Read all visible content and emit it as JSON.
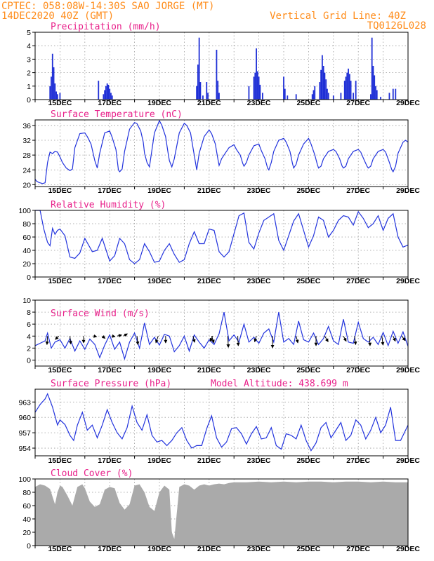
{
  "header": {
    "line1_left": "CPTEC:   058:08W-14:30S   SAO JORGE (MT)",
    "line2_left": "14DEC2020 40Z (GMT)",
    "line1_right": "Vertical Grid Line: 40Z",
    "line2_right": "TQ0126L028"
  },
  "colors": {
    "header": "#ff8c1a",
    "panel_title": "#e8208a",
    "series_line": "#2233dd",
    "precip_bar": "#1f2fd6",
    "cloud_fill": "#aaaaaa",
    "wind_arrow": "#000000",
    "grid": "#999999"
  },
  "chart_data": [
    {
      "id": "precip",
      "type": "bar",
      "title": "Precipitation (mm/h)",
      "ylim": [
        0,
        5
      ],
      "yticks": [
        0,
        1,
        2,
        3,
        4,
        5
      ],
      "xticks": [
        "15DEC",
        "17DEC",
        "19DEC",
        "21DEC",
        "23DEC",
        "25DEC",
        "27DEC",
        "29DEC"
      ],
      "bars": [
        [
          14.6,
          1.0
        ],
        [
          14.65,
          1.7
        ],
        [
          14.7,
          3.4
        ],
        [
          14.75,
          2.4
        ],
        [
          14.8,
          1.2
        ],
        [
          14.85,
          0.6
        ],
        [
          14.9,
          0.4
        ],
        [
          15.0,
          0.5
        ],
        [
          16.55,
          1.4
        ],
        [
          16.75,
          0.4
        ],
        [
          16.8,
          0.7
        ],
        [
          16.85,
          1.0
        ],
        [
          16.9,
          1.2
        ],
        [
          16.95,
          1.1
        ],
        [
          17.0,
          0.8
        ],
        [
          17.05,
          0.5
        ],
        [
          17.1,
          0.3
        ],
        [
          20.5,
          1.0
        ],
        [
          20.55,
          2.6
        ],
        [
          20.6,
          4.6
        ],
        [
          20.65,
          1.3
        ],
        [
          20.75,
          0.3
        ],
        [
          20.9,
          1.3
        ],
        [
          20.95,
          0.5
        ],
        [
          21.3,
          3.7
        ],
        [
          21.35,
          1.4
        ],
        [
          21.4,
          0.5
        ],
        [
          22.6,
          1.0
        ],
        [
          22.8,
          1.7
        ],
        [
          22.85,
          2.0
        ],
        [
          22.9,
          3.8
        ],
        [
          22.95,
          2.1
        ],
        [
          23.0,
          1.7
        ],
        [
          23.05,
          1.1
        ],
        [
          23.15,
          0.5
        ],
        [
          24.0,
          1.7
        ],
        [
          24.05,
          0.8
        ],
        [
          24.15,
          0.3
        ],
        [
          24.5,
          0.4
        ],
        [
          25.15,
          0.4
        ],
        [
          25.2,
          0.7
        ],
        [
          25.25,
          1.0
        ],
        [
          25.45,
          1.3
        ],
        [
          25.5,
          2.2
        ],
        [
          25.55,
          3.3
        ],
        [
          25.6,
          2.5
        ],
        [
          25.65,
          2.0
        ],
        [
          25.7,
          1.5
        ],
        [
          25.75,
          0.8
        ],
        [
          25.8,
          0.5
        ],
        [
          26.0,
          0.3
        ],
        [
          26.3,
          0.5
        ],
        [
          26.45,
          1.4
        ],
        [
          26.5,
          1.7
        ],
        [
          26.55,
          2.0
        ],
        [
          26.6,
          2.3
        ],
        [
          26.65,
          1.9
        ],
        [
          26.7,
          1.4
        ],
        [
          26.8,
          0.5
        ],
        [
          26.9,
          1.4
        ],
        [
          27.5,
          0.4
        ],
        [
          27.55,
          4.6
        ],
        [
          27.6,
          2.5
        ],
        [
          27.65,
          1.8
        ],
        [
          27.7,
          1.0
        ],
        [
          27.75,
          0.7
        ],
        [
          27.9,
          0.2
        ],
        [
          28.25,
          0.5
        ],
        [
          28.4,
          0.8
        ],
        [
          28.5,
          0.8
        ]
      ]
    },
    {
      "id": "temp",
      "type": "line",
      "title": "Surface Temperature (nC)",
      "ylim": [
        19.5,
        37.5
      ],
      "yticks": [
        20,
        24,
        28,
        32,
        36
      ],
      "xticks": [
        "15DEC",
        "17DEC",
        "19DEC",
        "21DEC",
        "23DEC",
        "25DEC",
        "27DEC",
        "29DEC"
      ],
      "x": [
        14.0,
        14.05,
        14.15,
        14.3,
        14.4,
        14.5,
        14.6,
        14.7,
        14.8,
        14.9,
        15.0,
        15.1,
        15.25,
        15.4,
        15.5,
        15.6,
        15.8,
        16.0,
        16.1,
        16.25,
        16.35,
        16.4,
        16.5,
        16.6,
        16.8,
        17.0,
        17.1,
        17.25,
        17.35,
        17.4,
        17.5,
        17.6,
        17.8,
        18.0,
        18.1,
        18.25,
        18.35,
        18.4,
        18.5,
        18.6,
        18.8,
        19.0,
        19.1,
        19.25,
        19.35,
        19.4,
        19.5,
        19.6,
        19.8,
        20.0,
        20.1,
        20.25,
        20.35,
        20.4,
        20.5,
        20.6,
        20.8,
        21.0,
        21.1,
        21.25,
        21.35,
        21.4,
        21.5,
        21.6,
        21.8,
        22.0,
        22.1,
        22.25,
        22.35,
        22.4,
        22.5,
        22.6,
        22.8,
        23.0,
        23.1,
        23.25,
        23.35,
        23.4,
        23.5,
        23.6,
        23.8,
        24.0,
        24.1,
        24.25,
        24.35,
        24.4,
        24.5,
        24.6,
        24.8,
        25.0,
        25.1,
        25.25,
        25.35,
        25.4,
        25.5,
        25.6,
        25.8,
        26.0,
        26.1,
        26.25,
        26.35,
        26.4,
        26.5,
        26.6,
        26.8,
        27.0,
        27.1,
        27.25,
        27.35,
        27.4,
        27.5,
        27.6,
        27.8,
        28.0,
        28.1,
        28.25,
        28.35,
        28.4,
        28.5,
        28.6,
        28.8,
        28.9,
        29.0
      ],
      "y": [
        21.5,
        21.0,
        20.6,
        20.3,
        20.5,
        26.0,
        28.8,
        28.4,
        29.0,
        28.8,
        27.5,
        26.0,
        24.5,
        23.8,
        24.2,
        30.0,
        33.8,
        34.0,
        33.0,
        31.0,
        28.0,
        26.5,
        24.5,
        28.5,
        34.0,
        34.5,
        32.8,
        29.5,
        24.0,
        23.5,
        24.2,
        29.0,
        35.0,
        36.8,
        36.5,
        34.5,
        31.5,
        28.5,
        26.0,
        24.8,
        34.0,
        37.3,
        36.0,
        33.0,
        28.5,
        26.5,
        24.8,
        27.0,
        34.0,
        36.6,
        36.0,
        34.0,
        30.0,
        28.0,
        24.0,
        28.5,
        33.0,
        34.8,
        33.8,
        31.0,
        27.0,
        25.2,
        27.0,
        28.0,
        30.0,
        30.8,
        29.5,
        28.0,
        25.8,
        25.0,
        26.0,
        28.0,
        30.5,
        31.0,
        29.2,
        27.0,
        24.5,
        24.0,
        26.0,
        29.0,
        32.0,
        32.5,
        31.5,
        29.0,
        25.8,
        24.5,
        25.5,
        28.0,
        31.0,
        32.5,
        31.0,
        28.0,
        25.5,
        24.5,
        25.0,
        27.0,
        29.0,
        29.5,
        29.0,
        27.0,
        25.0,
        24.5,
        25.0,
        27.0,
        29.0,
        29.5,
        28.8,
        26.5,
        25.0,
        24.5,
        25.0,
        27.0,
        29.0,
        29.5,
        28.8,
        26.0,
        24.0,
        23.5,
        25.0,
        28.5,
        31.5,
        32.0,
        31.5
      ]
    },
    {
      "id": "rh",
      "type": "line",
      "title": "Relative Humidity (%)",
      "ylim": [
        0,
        100
      ],
      "yticks": [
        0,
        20,
        40,
        60,
        80,
        100
      ],
      "xticks": [
        "15DEC",
        "17DEC",
        "19DEC",
        "21DEC",
        "23DEC",
        "25DEC",
        "27DEC",
        "29DEC"
      ],
      "x": [
        14.0,
        14.2,
        14.35,
        14.5,
        14.6,
        14.7,
        14.8,
        14.9,
        15.0,
        15.2,
        15.4,
        15.6,
        15.8,
        16.0,
        16.3,
        16.5,
        16.7,
        17.0,
        17.2,
        17.4,
        17.6,
        17.8,
        18.0,
        18.2,
        18.4,
        18.6,
        18.8,
        19.0,
        19.2,
        19.4,
        19.6,
        19.8,
        20.0,
        20.2,
        20.4,
        20.6,
        20.8,
        21.0,
        21.2,
        21.4,
        21.6,
        21.8,
        22.0,
        22.2,
        22.4,
        22.6,
        22.8,
        23.0,
        23.2,
        23.4,
        23.6,
        23.8,
        24.0,
        24.2,
        24.4,
        24.6,
        24.8,
        25.0,
        25.2,
        25.4,
        25.6,
        25.8,
        26.0,
        26.2,
        26.4,
        26.6,
        26.8,
        27.0,
        27.2,
        27.4,
        27.6,
        27.8,
        28.0,
        28.2,
        28.4,
        28.6,
        28.8,
        29.0
      ],
      "y": [
        100,
        100,
        72,
        52,
        47,
        73,
        64,
        70,
        72,
        62,
        30,
        28,
        36,
        58,
        38,
        40,
        58,
        24,
        32,
        58,
        50,
        26,
        20,
        26,
        50,
        38,
        22,
        24,
        40,
        50,
        34,
        22,
        26,
        50,
        68,
        50,
        50,
        72,
        70,
        38,
        30,
        38,
        65,
        92,
        96,
        52,
        42,
        66,
        85,
        90,
        95,
        55,
        40,
        62,
        84,
        95,
        70,
        45,
        62,
        90,
        85,
        60,
        70,
        85,
        92,
        90,
        78,
        98,
        88,
        74,
        80,
        92,
        70,
        88,
        95,
        60,
        45,
        48
      ]
    },
    {
      "id": "wind",
      "type": "line",
      "title": "Surface Wind (m/s)",
      "ylim": [
        -1,
        10
      ],
      "yticks": [
        0,
        2,
        4,
        6,
        8,
        10
      ],
      "xticks": [
        "15DEC",
        "17DEC",
        "19DEC",
        "21DEC",
        "23DEC",
        "25DEC",
        "27DEC",
        "29DEC"
      ],
      "x": [
        14.0,
        14.2,
        14.4,
        14.5,
        14.65,
        14.8,
        15.0,
        15.2,
        15.4,
        15.6,
        15.8,
        16.0,
        16.2,
        16.4,
        16.6,
        16.8,
        17.0,
        17.2,
        17.4,
        17.6,
        17.8,
        18.0,
        18.2,
        18.4,
        18.6,
        18.8,
        19.0,
        19.2,
        19.4,
        19.6,
        19.8,
        20.0,
        20.2,
        20.4,
        20.6,
        20.8,
        21.0,
        21.2,
        21.4,
        21.6,
        21.8,
        22.0,
        22.2,
        22.4,
        22.6,
        22.8,
        23.0,
        23.2,
        23.4,
        23.6,
        23.8,
        24.0,
        24.2,
        24.4,
        24.6,
        24.8,
        25.0,
        25.2,
        25.4,
        25.6,
        25.8,
        26.0,
        26.2,
        26.4,
        26.6,
        26.8,
        27.0,
        27.2,
        27.4,
        27.6,
        27.8,
        28.0,
        28.2,
        28.4,
        28.6,
        28.8,
        29.0
      ],
      "y": [
        2.4,
        2.8,
        3.2,
        4.5,
        2.0,
        3.0,
        3.4,
        2.0,
        3.6,
        1.5,
        3.2,
        1.8,
        3.5,
        2.6,
        0.4,
        2.5,
        4.2,
        1.8,
        3.0,
        0.2,
        3.0,
        4.5,
        2.0,
        6.2,
        2.6,
        3.8,
        2.5,
        4.3,
        4.0,
        1.4,
        2.4,
        4.0,
        1.5,
        4.2,
        3.0,
        2.0,
        3.4,
        2.6,
        4.4,
        8.0,
        3.2,
        4.2,
        3.0,
        6.0,
        3.0,
        3.8,
        2.8,
        4.5,
        5.2,
        3.0,
        8.0,
        3.0,
        3.6,
        2.6,
        6.5,
        3.4,
        3.0,
        4.5,
        2.6,
        3.6,
        5.6,
        3.2,
        2.6,
        6.8,
        3.0,
        2.8,
        6.3,
        3.6,
        3.0,
        3.8,
        2.6,
        4.6,
        2.4,
        4.8,
        2.8,
        4.7,
        2.3
      ],
      "arrows": [
        [
          14.5,
          -0.1,
          1.5
        ],
        [
          14.95,
          -0.6,
          0.6
        ],
        [
          15.4,
          0.15,
          1.4
        ],
        [
          15.95,
          0.0,
          1.2
        ],
        [
          16.35,
          0.55,
          0.1
        ],
        [
          16.7,
          0.5,
          0.4
        ],
        [
          17.1,
          0.5,
          0.1
        ],
        [
          17.3,
          0.8,
          -0.2
        ],
        [
          17.55,
          0.7,
          -0.4
        ],
        [
          18.1,
          0.15,
          1.5
        ],
        [
          18.95,
          -0.4,
          1.2
        ],
        [
          19.25,
          0.0,
          1.2
        ],
        [
          20.35,
          0.3,
          1.1
        ],
        [
          21.1,
          0.4,
          1.2
        ],
        [
          21.15,
          -0.5,
          0.9
        ],
        [
          21.75,
          0.1,
          2.0
        ],
        [
          22.15,
          0.1,
          1.7
        ],
        [
          22.9,
          -0.3,
          1.0
        ],
        [
          23.55,
          0.0,
          2.1
        ],
        [
          24.5,
          0.3,
          1.2
        ],
        [
          25.3,
          0.0,
          1.7
        ],
        [
          25.65,
          0.6,
          1.0
        ],
        [
          26.4,
          0.5,
          0.9
        ],
        [
          26.85,
          0.2,
          1.5
        ],
        [
          27.45,
          0.1,
          1.7
        ],
        [
          27.95,
          0.2,
          1.6
        ],
        [
          28.4,
          0.4,
          0.9
        ],
        [
          28.75,
          0.6,
          0.8
        ]
      ]
    },
    {
      "id": "pressure",
      "type": "line",
      "title": "Surface Pressure (hPa)",
      "subtitle": "Model Altitude: 438.699 m",
      "ylim": [
        952.5,
        965.5
      ],
      "yticks": [
        954,
        957,
        960,
        963
      ],
      "xticks": [
        "15DEC",
        "17DEC",
        "19DEC",
        "21DEC",
        "23DEC",
        "25DEC",
        "27DEC",
        "29DEC"
      ],
      "x": [
        14.0,
        14.2,
        14.4,
        14.5,
        14.7,
        14.9,
        15.0,
        15.2,
        15.4,
        15.55,
        15.7,
        15.9,
        16.1,
        16.3,
        16.5,
        16.7,
        16.9,
        17.1,
        17.3,
        17.5,
        17.7,
        17.9,
        18.1,
        18.3,
        18.5,
        18.7,
        18.9,
        19.1,
        19.3,
        19.5,
        19.7,
        19.9,
        20.1,
        20.3,
        20.5,
        20.7,
        20.9,
        21.1,
        21.3,
        21.5,
        21.7,
        21.9,
        22.1,
        22.3,
        22.5,
        22.7,
        22.9,
        23.1,
        23.3,
        23.5,
        23.7,
        23.9,
        24.1,
        24.3,
        24.5,
        24.7,
        24.9,
        25.1,
        25.3,
        25.5,
        25.7,
        25.9,
        26.1,
        26.3,
        26.5,
        26.7,
        26.9,
        27.1,
        27.3,
        27.5,
        27.7,
        27.9,
        28.1,
        28.3,
        28.5,
        28.7,
        28.9,
        29.0
      ],
      "y": [
        961.0,
        962.5,
        963.6,
        964.6,
        962.0,
        958.5,
        959.5,
        958.6,
        956.5,
        955.5,
        958.5,
        961.0,
        957.5,
        958.5,
        956.0,
        958.5,
        961.5,
        959.0,
        957.0,
        955.8,
        958.0,
        962.2,
        959.0,
        957.5,
        960.5,
        956.5,
        955.2,
        955.5,
        954.5,
        955.5,
        957.0,
        958.0,
        955.5,
        954.0,
        954.5,
        954.5,
        957.8,
        960.3,
        956.0,
        954.2,
        955.2,
        957.8,
        958.0,
        956.8,
        954.8,
        956.8,
        958.2,
        955.8,
        956.0,
        958.0,
        954.5,
        953.8,
        956.8,
        956.5,
        955.8,
        958.5,
        955.5,
        953.5,
        955.0,
        958.0,
        959.0,
        956.0,
        957.5,
        959.0,
        955.5,
        956.5,
        959.5,
        958.5,
        955.8,
        957.5,
        960.0,
        957.0,
        958.5,
        962.0,
        955.5,
        955.5,
        957.5,
        958.5
      ]
    },
    {
      "id": "cloud",
      "type": "area",
      "title": "Cloud Cover (%)",
      "ylim": [
        0,
        100
      ],
      "yticks": [
        0,
        20,
        40,
        60,
        80,
        100
      ],
      "xticks": [
        "15DEC",
        "17DEC",
        "19DEC",
        "21DEC",
        "23DEC",
        "25DEC",
        "27DEC",
        "29DEC"
      ],
      "x": [
        14.0,
        14.2,
        14.4,
        14.6,
        14.8,
        14.9,
        15.0,
        15.1,
        15.3,
        15.5,
        15.7,
        15.9,
        16.0,
        16.2,
        16.4,
        16.6,
        16.8,
        17.0,
        17.2,
        17.4,
        17.6,
        17.8,
        18.0,
        18.2,
        18.4,
        18.6,
        18.8,
        19.0,
        19.2,
        19.4,
        19.5,
        19.6,
        19.8,
        20.0,
        20.2,
        20.4,
        20.6,
        20.8,
        21.0,
        21.2,
        21.4,
        21.6,
        21.8,
        22.0,
        22.5,
        23.0,
        23.5,
        24.0,
        24.5,
        25.0,
        25.5,
        26.0,
        26.5,
        27.0,
        27.5,
        28.0,
        28.5,
        29.0
      ],
      "y": [
        88,
        92,
        90,
        85,
        62,
        80,
        90,
        88,
        75,
        60,
        88,
        92,
        86,
        66,
        58,
        62,
        84,
        88,
        86,
        64,
        54,
        62,
        90,
        92,
        80,
        58,
        52,
        80,
        90,
        84,
        20,
        10,
        88,
        92,
        90,
        84,
        90,
        92,
        90,
        92,
        93,
        92,
        94,
        95,
        95,
        96,
        95,
        96,
        95,
        96,
        96,
        95,
        96,
        96,
        95,
        96,
        95,
        95
      ]
    }
  ]
}
